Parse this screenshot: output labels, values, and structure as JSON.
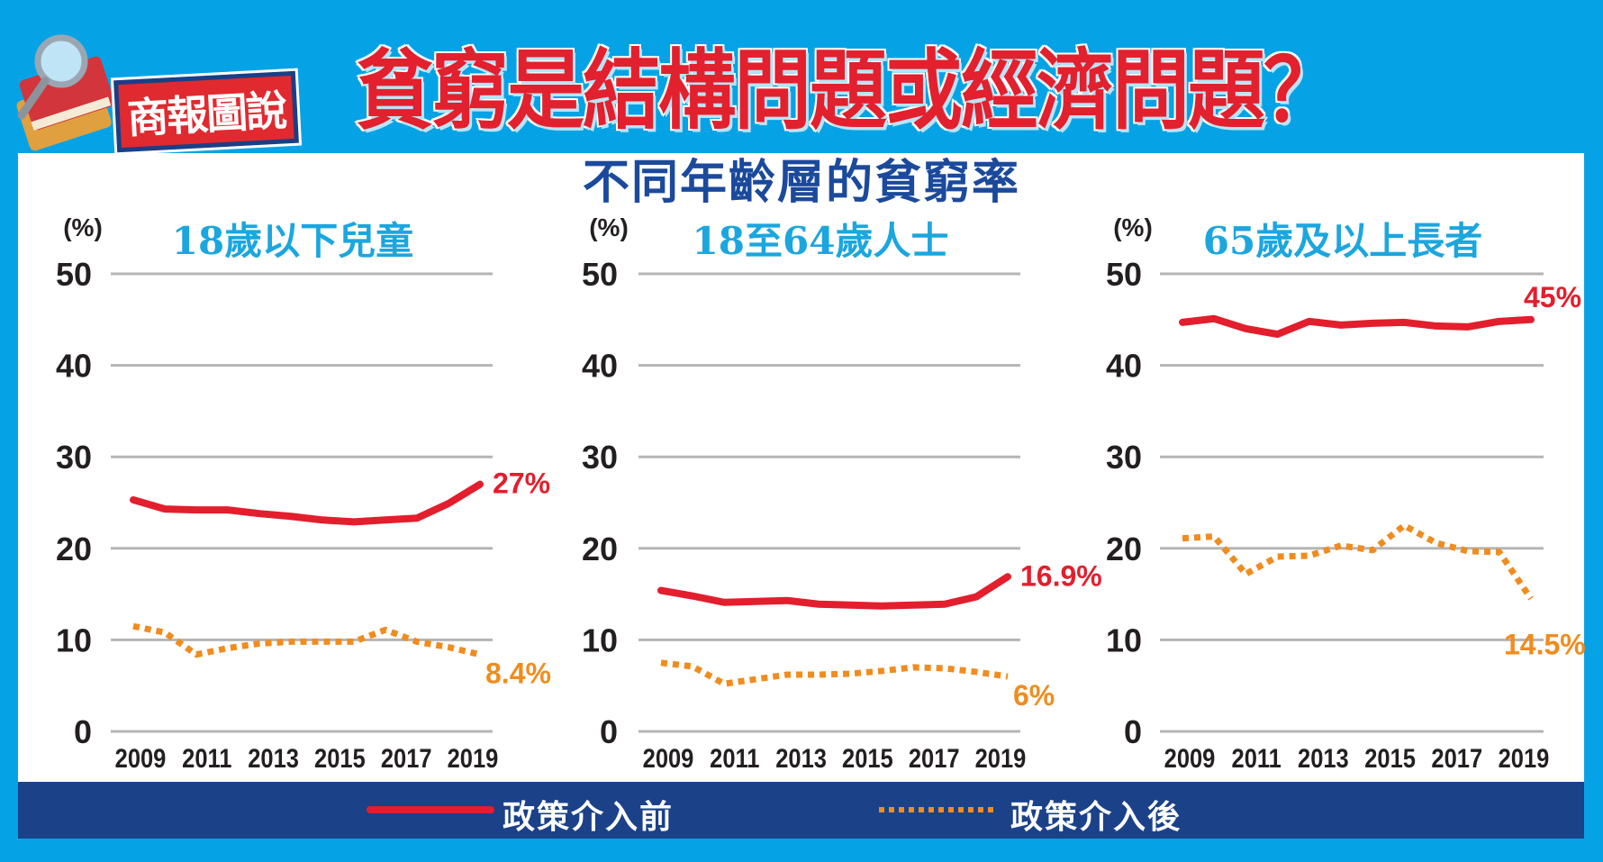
{
  "header": {
    "logo_text": "商報圖說",
    "title": "貧窮是結構問題或經濟問題？",
    "subtitle": "不同年齡層的貧窮率"
  },
  "legend": {
    "before_label": "政策介入前",
    "after_label": "政策介入後"
  },
  "colors": {
    "background": "#05a3e6",
    "title_red": "#e3202d",
    "before_line": "#e31e2d",
    "after_line": "#f08c1e",
    "legend_bar": "#1b4189",
    "chart_title": "#1ba6df",
    "gridline": "#b5b5b5"
  },
  "chart_data": [
    {
      "type": "line",
      "title": "18歲以下兒童",
      "ylabel": "(%)",
      "ylim": [
        0,
        50
      ],
      "yticks": [
        "0",
        "10",
        "20",
        "30",
        "40",
        "50"
      ],
      "x_tick_labels": [
        "2009",
        "2011",
        "2013",
        "2015",
        "2017",
        "2019"
      ],
      "grid": true,
      "series": [
        {
          "name": "政策介入前",
          "values": [
            25.3,
            24.3,
            24.2,
            24.2,
            23.8,
            23.5,
            23.1,
            22.9,
            23.1,
            23.3,
            24.9,
            27.0
          ],
          "end_label": "27%"
        },
        {
          "name": "政策介入後",
          "values": [
            11.5,
            10.8,
            8.4,
            9.1,
            9.6,
            9.8,
            9.8,
            9.8,
            11.1,
            9.8,
            9.2,
            8.4
          ],
          "end_label": "8.4%"
        }
      ]
    },
    {
      "type": "line",
      "title": "18至64歲人士",
      "ylabel": "(%)",
      "ylim": [
        0,
        50
      ],
      "yticks": [
        "0",
        "10",
        "20",
        "30",
        "40",
        "50"
      ],
      "x_tick_labels": [
        "2009",
        "2011",
        "2013",
        "2015",
        "2017",
        "2019"
      ],
      "grid": true,
      "series": [
        {
          "name": "政策介入前",
          "values": [
            15.4,
            14.8,
            14.1,
            14.2,
            14.3,
            13.9,
            13.8,
            13.7,
            13.8,
            13.9,
            14.7,
            16.9
          ],
          "end_label": "16.9%"
        },
        {
          "name": "政策介入後",
          "values": [
            7.5,
            7.1,
            5.2,
            5.7,
            6.2,
            6.2,
            6.3,
            6.6,
            7.0,
            6.9,
            6.5,
            6.0
          ],
          "end_label": "6%"
        }
      ]
    },
    {
      "type": "line",
      "title": "65歲及以上長者",
      "ylabel": "(%)",
      "ylim": [
        0,
        50
      ],
      "yticks": [
        "0",
        "10",
        "20",
        "30",
        "40",
        "50"
      ],
      "x_tick_labels": [
        "2009",
        "2011",
        "2013",
        "2015",
        "2017",
        "2019"
      ],
      "grid": true,
      "series": [
        {
          "name": "政策介入前",
          "values": [
            44.7,
            45.1,
            44.0,
            43.4,
            44.8,
            44.4,
            44.6,
            44.7,
            44.3,
            44.2,
            44.8,
            45.0
          ],
          "end_label": "45%"
        },
        {
          "name": "政策介入後",
          "values": [
            21.1,
            21.3,
            17.2,
            19.1,
            19.2,
            20.3,
            19.8,
            22.5,
            20.6,
            19.7,
            19.6,
            14.5
          ],
          "end_label": "14.5%"
        }
      ]
    }
  ]
}
